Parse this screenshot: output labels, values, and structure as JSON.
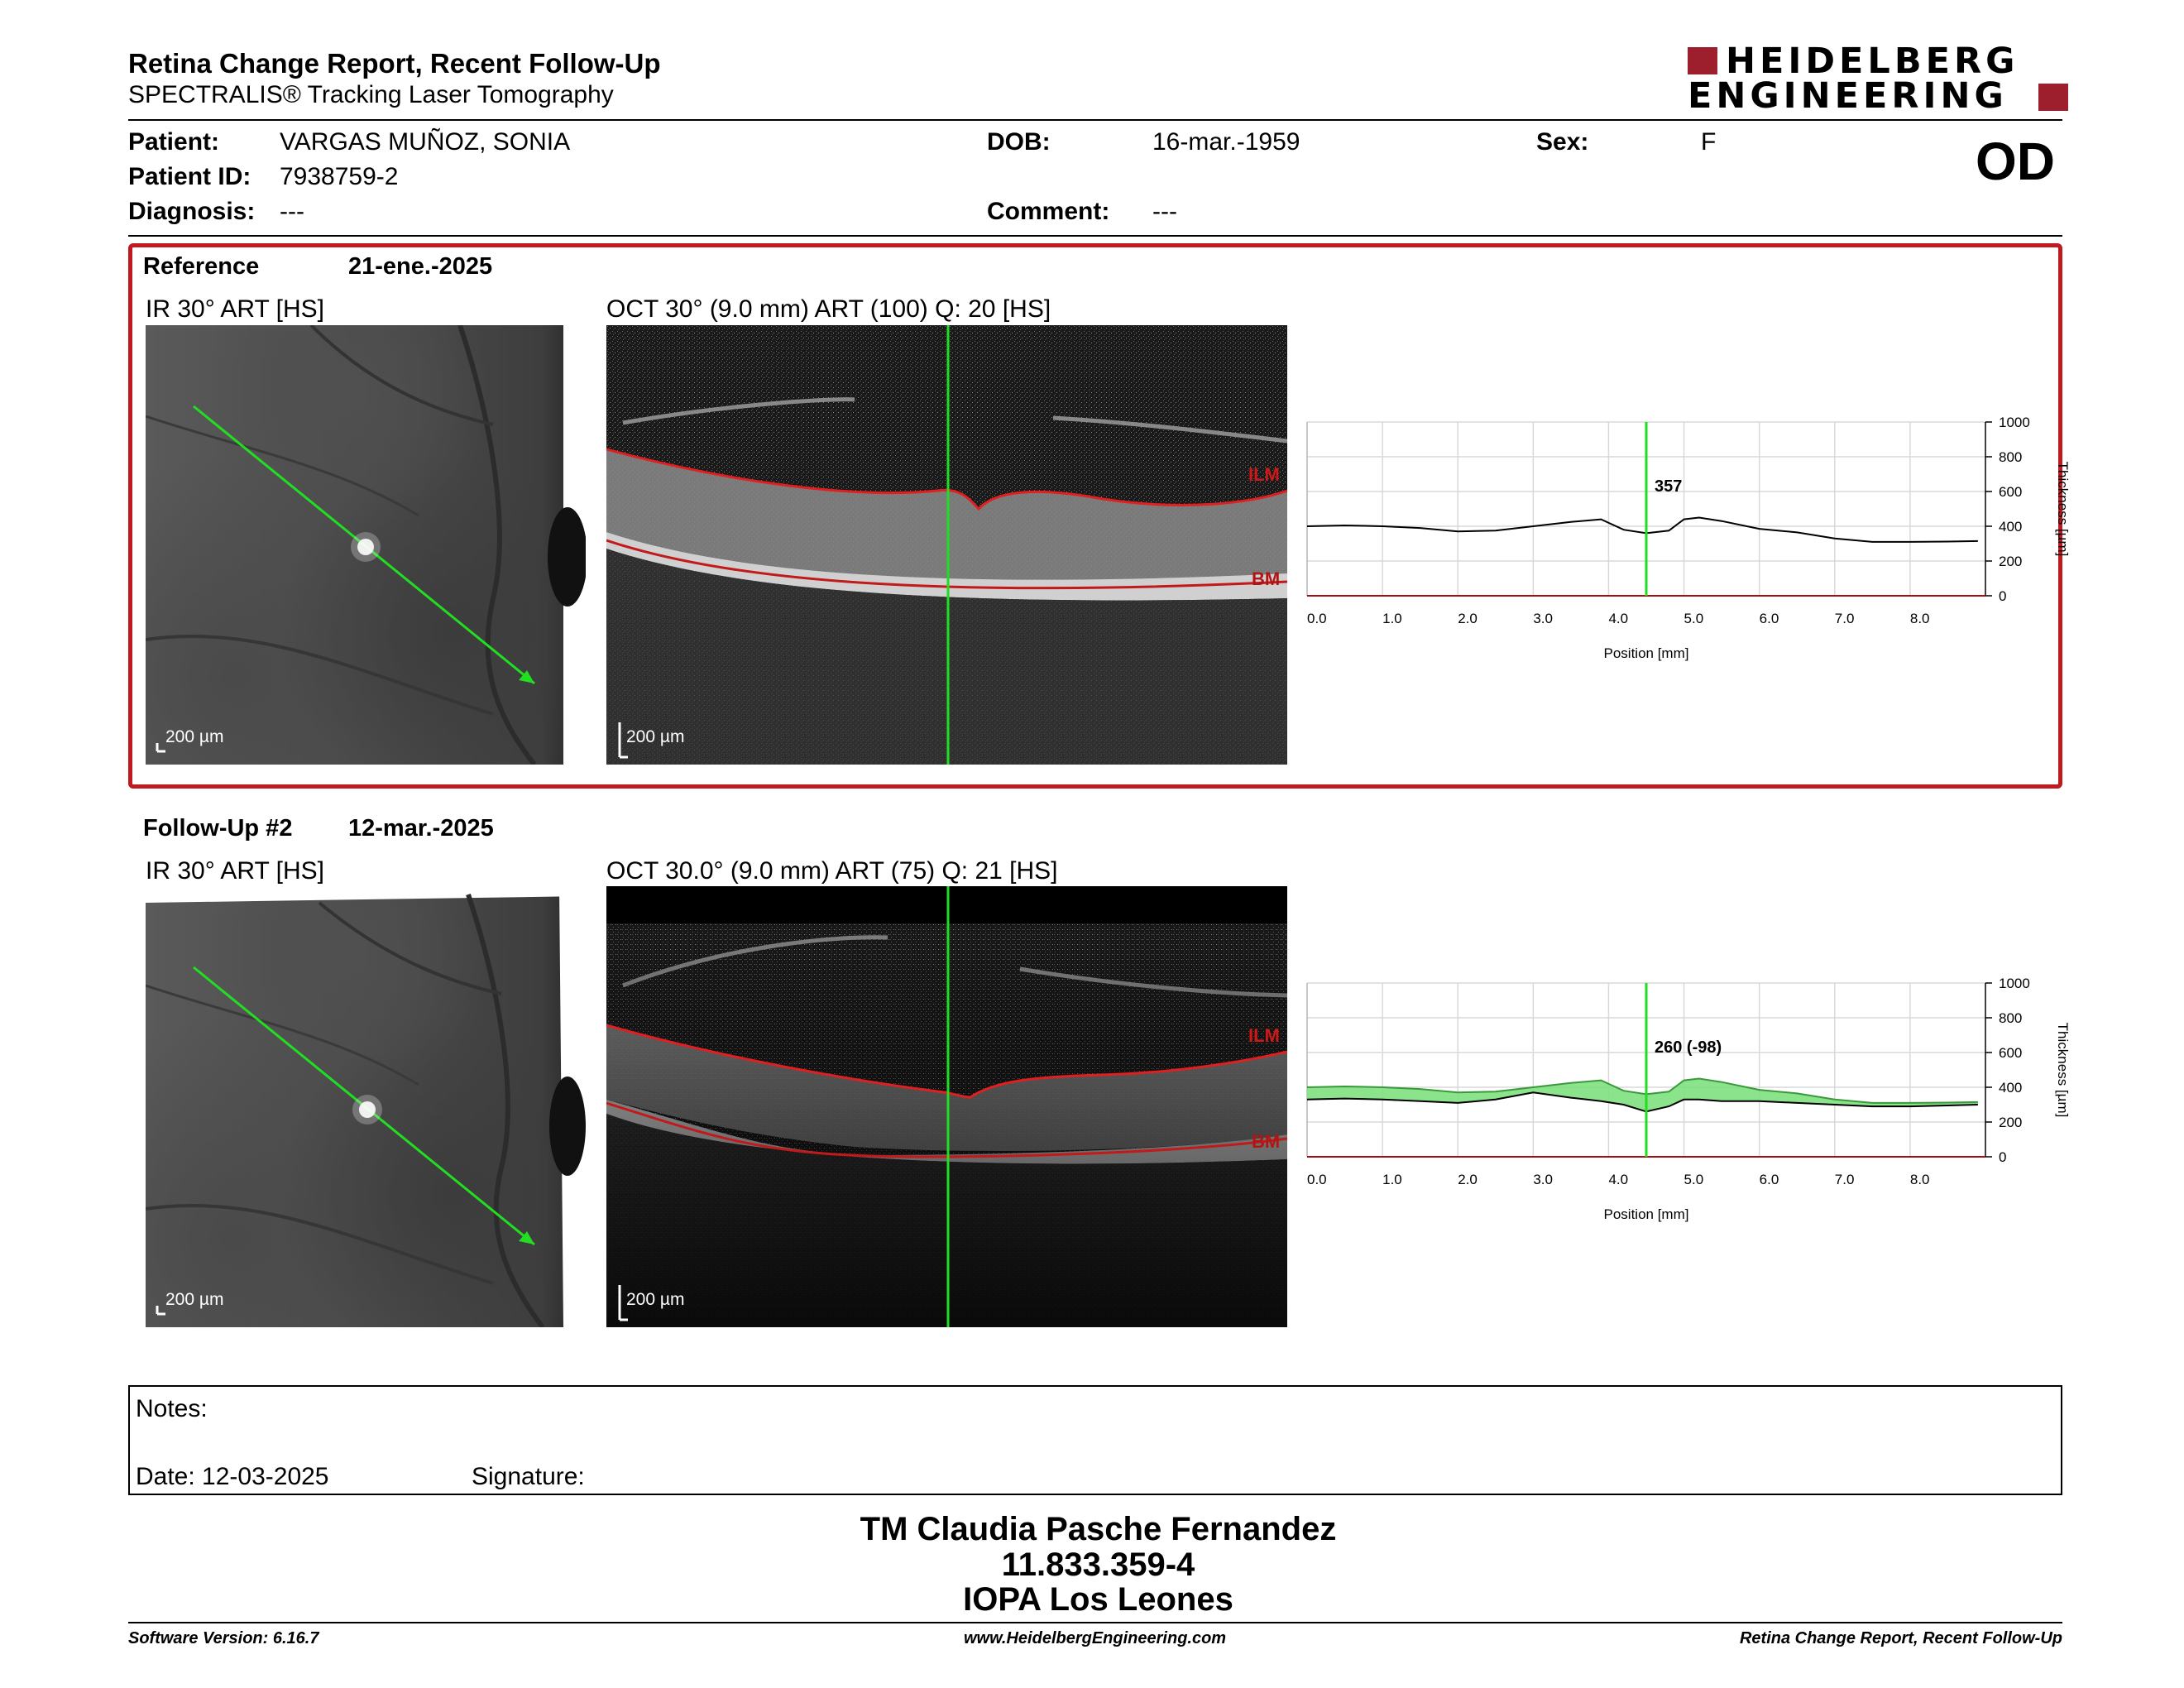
{
  "header": {
    "title": "Retina Change Report, Recent Follow-Up",
    "subtitle": "SPECTRALIS® Tracking Laser Tomography",
    "logo_line1": "HEIDELBERG",
    "logo_line2": "ENGINEERING",
    "brand_color": "#9d1e2d"
  },
  "patient": {
    "patient_label": "Patient:",
    "patient_name": "VARGAS MUÑOZ, SONIA",
    "dob_label": "DOB:",
    "dob": "16-mar.-1959",
    "sex_label": "Sex:",
    "sex": "F",
    "id_label": "Patient ID:",
    "id": "7938759-2",
    "diagnosis_label": "Diagnosis:",
    "diagnosis": "---",
    "comment_label": "Comment:",
    "comment": "---",
    "eye": "OD"
  },
  "reference": {
    "label": "Reference",
    "date": "21-ene.-2025",
    "ir_title": "IR 30° ART [HS]",
    "oct_title": "OCT 30° (9.0 mm) ART (100) Q: 20 [HS]",
    "ir_scale": "200 µm",
    "oct_scale": "200 µm",
    "ilm_label": "ILM",
    "bm_label": "BM",
    "frame_color": "#c0191f"
  },
  "followup": {
    "label": "Follow-Up #2",
    "date": "12-mar.-2025",
    "ir_title": "IR 30° ART [HS]",
    "oct_title": "OCT 30.0° (9.0 mm) ART (75) Q: 21 [HS]",
    "ir_scale": "200 µm",
    "oct_scale": "200 µm",
    "ilm_label": "ILM",
    "bm_label": "BM"
  },
  "chart_data": [
    {
      "type": "line",
      "xlabel": "Position [mm]",
      "ylabel": "Thickness [µm]",
      "xlim": [
        0,
        9.0
      ],
      "ylim": [
        0,
        1000
      ],
      "xticks": [
        "0.0",
        "1.0",
        "2.0",
        "3.0",
        "4.0",
        "5.0",
        "6.0",
        "7.0",
        "8.0"
      ],
      "yticks": [
        "0",
        "200",
        "400",
        "600",
        "800",
        "1000"
      ],
      "grid": true,
      "cursor_x": 4.5,
      "cursor_label": "357",
      "series": [
        {
          "x": [
            0.0,
            0.5,
            1.0,
            1.5,
            2.0,
            2.5,
            3.0,
            3.5,
            3.9,
            4.2,
            4.5,
            4.8,
            5.0,
            5.2,
            5.5,
            6.0,
            6.5,
            7.0,
            7.5,
            8.0,
            8.5,
            8.9
          ],
          "y": [
            400,
            405,
            400,
            390,
            370,
            375,
            400,
            425,
            440,
            380,
            360,
            375,
            440,
            450,
            430,
            385,
            365,
            330,
            310,
            310,
            312,
            315
          ]
        }
      ],
      "line_color": "#000000",
      "cursor_color": "#22dd22"
    },
    {
      "type": "area",
      "xlabel": "Position [mm]",
      "ylabel": "Thickness [µm]",
      "xlim": [
        0,
        9.0
      ],
      "ylim": [
        0,
        1000
      ],
      "xticks": [
        "0.0",
        "1.0",
        "2.0",
        "3.0",
        "4.0",
        "5.0",
        "6.0",
        "7.0",
        "8.0"
      ],
      "yticks": [
        "0",
        "200",
        "400",
        "600",
        "800",
        "1000"
      ],
      "grid": true,
      "cursor_x": 4.5,
      "cursor_label": "260 (-98)",
      "series": [
        {
          "x": [
            0.0,
            0.5,
            1.0,
            1.5,
            2.0,
            2.5,
            3.0,
            3.5,
            3.9,
            4.2,
            4.5,
            4.8,
            5.0,
            5.2,
            5.5,
            6.0,
            6.5,
            7.0,
            7.5,
            8.0,
            8.5,
            8.9
          ],
          "y": [
            400,
            405,
            400,
            390,
            370,
            375,
            400,
            425,
            440,
            380,
            360,
            375,
            440,
            450,
            430,
            385,
            365,
            330,
            310,
            310,
            312,
            315
          ]
        },
        {
          "x": [
            0.0,
            0.5,
            1.0,
            1.5,
            2.0,
            2.5,
            3.0,
            3.5,
            3.9,
            4.2,
            4.5,
            4.8,
            5.0,
            5.2,
            5.5,
            6.0,
            6.5,
            7.0,
            7.5,
            8.0,
            8.5,
            8.9
          ],
          "y": [
            330,
            335,
            330,
            320,
            310,
            330,
            370,
            340,
            320,
            300,
            260,
            290,
            330,
            330,
            320,
            320,
            310,
            300,
            290,
            290,
            295,
            300
          ]
        }
      ],
      "line_color": "#000000",
      "fill_color": "#7ee07e",
      "cursor_color": "#22dd22"
    }
  ],
  "notes": {
    "notes_label": "Notes:",
    "date_label": "Date: 12-03-2025",
    "signature_label": "Signature:"
  },
  "signature_block": {
    "name": "TM Claudia Pasche Fernandez",
    "rut": "11.833.359-4",
    "institution": "IOPA Los Leones"
  },
  "footer": {
    "software": "Software Version: 6.16.7",
    "website": "www.HeidelbergEngineering.com",
    "report_name": "Retina Change Report, Recent Follow-Up"
  }
}
